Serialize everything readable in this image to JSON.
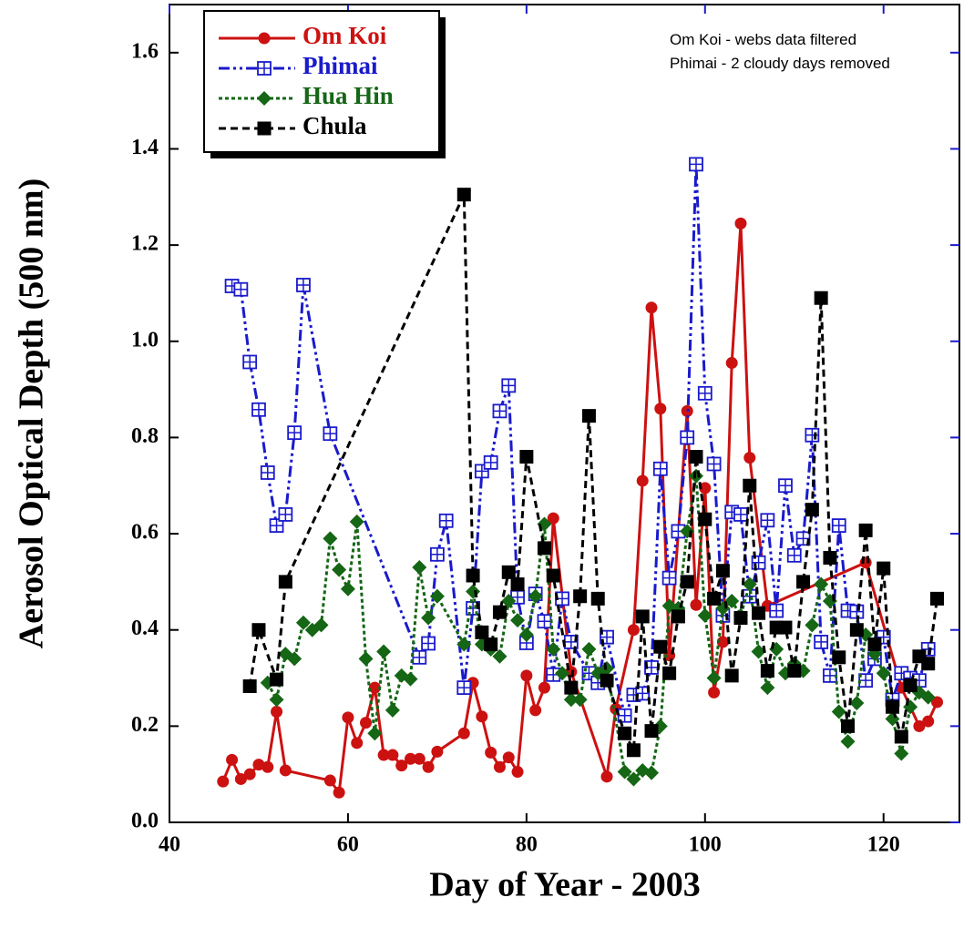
{
  "chart_data": {
    "type": "line",
    "xlabel": "Day of Year - 2003",
    "ylabel": "Aerosol Optical Depth (500 nm)",
    "annotations": [
      "Om Koi - webs data filtered",
      "Phimai - 2 cloudy days removed"
    ],
    "xlim": [
      40,
      128.5
    ],
    "ylim": [
      0,
      1.7
    ],
    "xticks": [
      40,
      60,
      80,
      100,
      120
    ],
    "yticks": [
      {
        "value": 0,
        "label": "0.0"
      },
      0.2,
      0.4,
      0.6,
      0.8,
      {
        "value": 1,
        "label": "1.0"
      },
      1.2,
      1.4,
      1.6
    ],
    "legend": "upper left",
    "series": [
      {
        "name": "Om Koi",
        "color": "#cc1111",
        "marker": "circle",
        "dash": "solid",
        "x": [
          46,
          47,
          48,
          49,
          50,
          51,
          52,
          53,
          58,
          59,
          60,
          61,
          62,
          63,
          64,
          65,
          66,
          67,
          68,
          69,
          70,
          73,
          74,
          75,
          76,
          77,
          78,
          79,
          80,
          81,
          82,
          83,
          85,
          89,
          90,
          92,
          93,
          94,
          95,
          96,
          98,
          99,
          100,
          101,
          102,
          103,
          104,
          105,
          107,
          118,
          122,
          124,
          125,
          126
        ],
        "values": [
          0.085,
          0.13,
          0.09,
          0.1,
          0.12,
          0.115,
          0.23,
          0.108,
          0.087,
          0.062,
          0.218,
          0.165,
          0.207,
          0.28,
          0.14,
          0.14,
          0.118,
          0.132,
          0.132,
          0.115,
          0.147,
          0.185,
          0.29,
          0.22,
          0.145,
          0.115,
          0.135,
          0.105,
          0.305,
          0.233,
          0.28,
          0.632,
          0.313,
          0.095,
          0.236,
          0.4,
          0.71,
          1.07,
          0.86,
          0.347,
          0.855,
          0.452,
          0.695,
          0.27,
          0.375,
          0.955,
          1.245,
          0.758,
          0.45,
          0.54,
          0.28,
          0.2,
          0.21,
          0.25
        ]
      },
      {
        "name": "Phimai",
        "color": "#1a1acc",
        "marker": "square-cross",
        "dash": "dash-dot-dot",
        "x": [
          47,
          48,
          49,
          50,
          51,
          52,
          53,
          54,
          55,
          58,
          68,
          69,
          70,
          71,
          73,
          74,
          75,
          76,
          77,
          78,
          79,
          80,
          81,
          82,
          83,
          84,
          85,
          87,
          88,
          89,
          91,
          92,
          93,
          94,
          95,
          96,
          97,
          98,
          99,
          100,
          101,
          102,
          103,
          104,
          105,
          106,
          107,
          108,
          109,
          110,
          111,
          112,
          113,
          114,
          115,
          116,
          117,
          118,
          119,
          120,
          121,
          122,
          123,
          124,
          125
        ],
        "values": [
          1.115,
          1.108,
          0.957,
          0.858,
          0.727,
          0.617,
          0.64,
          0.81,
          1.117,
          0.808,
          0.343,
          0.372,
          0.557,
          0.627,
          0.28,
          0.445,
          0.73,
          0.748,
          0.855,
          0.908,
          0.468,
          0.373,
          0.475,
          0.418,
          0.307,
          0.465,
          0.375,
          0.31,
          0.29,
          0.385,
          0.222,
          0.265,
          0.268,
          0.322,
          0.735,
          0.508,
          0.605,
          0.8,
          1.368,
          0.892,
          0.745,
          0.43,
          0.645,
          0.64,
          0.47,
          0.54,
          0.628,
          0.44,
          0.7,
          0.555,
          0.59,
          0.805,
          0.375,
          0.305,
          0.617,
          0.44,
          0.438,
          0.295,
          0.34,
          0.385,
          0.255,
          0.31,
          0.3,
          0.295,
          0.36
        ]
      },
      {
        "name": "Hua Hin",
        "color": "#156615",
        "marker": "diamond",
        "dash": "dotted",
        "x": [
          51,
          52,
          53,
          54,
          55,
          56,
          57,
          58,
          59,
          60,
          61,
          62,
          63,
          64,
          65,
          66,
          67,
          68,
          69,
          70,
          73,
          74,
          75,
          76,
          77,
          78,
          79,
          80,
          81,
          82,
          83,
          84,
          85,
          86,
          87,
          88,
          89,
          91,
          92,
          93,
          94,
          95,
          96,
          97,
          98,
          99,
          100,
          101,
          102,
          103,
          104,
          105,
          106,
          107,
          108,
          109,
          110,
          111,
          112,
          113,
          114,
          115,
          116,
          117,
          118,
          119,
          120,
          121,
          122,
          123,
          124,
          125
        ],
        "values": [
          0.29,
          0.255,
          0.35,
          0.34,
          0.415,
          0.4,
          0.41,
          0.59,
          0.525,
          0.485,
          0.625,
          0.34,
          0.185,
          0.355,
          0.233,
          0.305,
          0.298,
          0.53,
          0.425,
          0.47,
          0.37,
          0.48,
          0.37,
          0.36,
          0.345,
          0.46,
          0.42,
          0.39,
          0.47,
          0.62,
          0.36,
          0.31,
          0.255,
          0.255,
          0.36,
          0.31,
          0.32,
          0.105,
          0.09,
          0.108,
          0.103,
          0.2,
          0.45,
          0.445,
          0.605,
          0.72,
          0.43,
          0.3,
          0.445,
          0.46,
          0.43,
          0.495,
          0.355,
          0.28,
          0.36,
          0.31,
          0.33,
          0.315,
          0.41,
          0.495,
          0.46,
          0.23,
          0.168,
          0.248,
          0.39,
          0.35,
          0.31,
          0.215,
          0.143,
          0.24,
          0.27,
          0.26
        ]
      },
      {
        "name": "Chula",
        "color": "#000000",
        "marker": "square",
        "dash": "dashed",
        "x": [
          49,
          50,
          52,
          53,
          73,
          74,
          75,
          76,
          77,
          78,
          79,
          80,
          82,
          83,
          85,
          86,
          87,
          88,
          89,
          91,
          92,
          93,
          94,
          95,
          96,
          97,
          98,
          99,
          100,
          101,
          102,
          103,
          104,
          105,
          106,
          107,
          108,
          109,
          110,
          111,
          112,
          113,
          114,
          115,
          116,
          117,
          118,
          119,
          120,
          121,
          122,
          123,
          124,
          125,
          126
        ],
        "values": [
          0.283,
          0.4,
          0.297,
          0.5,
          1.305,
          0.513,
          0.395,
          0.37,
          0.437,
          0.52,
          0.495,
          0.76,
          0.57,
          0.513,
          0.28,
          0.47,
          0.845,
          0.465,
          0.295,
          0.185,
          0.15,
          0.428,
          0.19,
          0.365,
          0.31,
          0.428,
          0.5,
          0.76,
          0.63,
          0.465,
          0.523,
          0.305,
          0.425,
          0.7,
          0.435,
          0.315,
          0.405,
          0.405,
          0.315,
          0.5,
          0.65,
          1.09,
          0.55,
          0.343,
          0.2,
          0.4,
          0.607,
          0.37,
          0.528,
          0.24,
          0.178,
          0.285,
          0.345,
          0.33,
          0.465
        ]
      }
    ]
  }
}
